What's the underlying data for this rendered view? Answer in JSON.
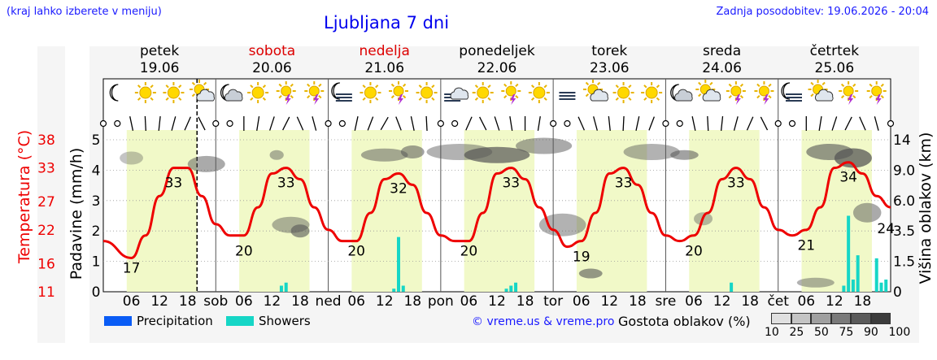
{
  "header": {
    "hint": "(kraj lahko izberete v meniju)",
    "title": "Ljubljana 7 dni",
    "updated": "Zadnja posodobitev: 19.06.2026 - 20:04"
  },
  "days": [
    {
      "name": "petek",
      "date": "19.06",
      "color": "#000000",
      "icons": [
        "moon",
        "sun",
        "sun",
        "cloud-sun"
      ]
    },
    {
      "name": "sobota",
      "date": "20.06",
      "color": "#dd0000",
      "icons": [
        "moon-cloud",
        "sun",
        "sun-storm",
        "sun-storm"
      ]
    },
    {
      "name": "nedelja",
      "date": "21.06",
      "color": "#dd0000",
      "icons": [
        "moon-fog",
        "sun",
        "sun-storm",
        "sun"
      ]
    },
    {
      "name": "ponedeljek",
      "date": "22.06",
      "color": "#000000",
      "icons": [
        "fog-cloud",
        "sun",
        "sun-storm",
        "sun"
      ]
    },
    {
      "name": "torek",
      "date": "23.06",
      "color": "#000000",
      "icons": [
        "fog",
        "cloud-sun",
        "sun",
        "sun"
      ]
    },
    {
      "name": "sreda",
      "date": "24.06",
      "color": "#000000",
      "icons": [
        "moon-cloud",
        "cloud-sun",
        "sun-storm",
        "sun-storm"
      ]
    },
    {
      "name": "četrtek",
      "date": "25.06",
      "color": "#000000",
      "icons": [
        "moon-fog",
        "cloud-sun",
        "sun-storm",
        "sun-storm"
      ]
    }
  ],
  "axes": {
    "temperature_label": "Temperatura (°C)",
    "precip_label": "Padavine (mm/h)",
    "cloud_label": "Višina oblakov (km)",
    "temperature_ticks": [
      "38",
      "33",
      "27",
      "22",
      "16",
      "11"
    ],
    "precip_ticks": [
      "5",
      "4",
      "3",
      "2",
      "1",
      "0"
    ],
    "cloud_ticks": [
      "14",
      "9.0",
      "6.0",
      "3.5",
      "1.5",
      "0"
    ],
    "x_day_abbr": [
      "sob",
      "ned",
      "pon",
      "tor",
      "sre",
      "čet"
    ],
    "x_hour_labels": [
      "06",
      "12",
      "18"
    ]
  },
  "chart_data": {
    "type": "line",
    "x_unit": "hours from 19.06 00:00",
    "ylim_temperature": [
      11,
      38
    ],
    "ylim_precip": [
      0,
      5
    ],
    "temperature_series": {
      "x": [
        0,
        6,
        9,
        12,
        15,
        18,
        21,
        24,
        27,
        30,
        33,
        36,
        39,
        42,
        45,
        48,
        51,
        54,
        57,
        60,
        63,
        66,
        69,
        72,
        75,
        78,
        81,
        84,
        87,
        90,
        93,
        96,
        99,
        102,
        105,
        108,
        111,
        114,
        117,
        120,
        123,
        126,
        129,
        132,
        135,
        138,
        141,
        144,
        147,
        150,
        153,
        156,
        159,
        162,
        165,
        168
      ],
      "values": [
        20,
        17,
        21,
        28,
        33,
        33,
        28,
        23,
        21,
        21,
        26,
        32,
        33,
        31,
        26,
        22,
        20,
        20,
        25,
        31,
        32,
        30,
        25,
        21,
        20,
        20,
        25,
        32,
        33,
        31,
        26,
        22,
        19,
        20,
        25,
        32,
        33,
        30,
        25,
        21,
        20,
        21,
        25,
        31,
        33,
        31,
        26,
        22,
        21,
        22,
        26,
        33,
        34,
        32,
        28,
        26
      ]
    },
    "temperature_labels": [
      {
        "x": 6,
        "value": "17"
      },
      {
        "x": 15,
        "value": "33"
      },
      {
        "x": 30,
        "value": "20"
      },
      {
        "x": 39,
        "value": "33"
      },
      {
        "x": 54,
        "value": "20"
      },
      {
        "x": 63,
        "value": "32"
      },
      {
        "x": 78,
        "value": "20"
      },
      {
        "x": 87,
        "value": "33"
      },
      {
        "x": 102,
        "value": "19"
      },
      {
        "x": 111,
        "value": "33"
      },
      {
        "x": 126,
        "value": "20"
      },
      {
        "x": 135,
        "value": "33"
      },
      {
        "x": 150,
        "value": "21"
      },
      {
        "x": 159,
        "value": "34"
      },
      {
        "x": 167,
        "value": "24"
      }
    ],
    "showers": [
      {
        "x": 38,
        "mm": 0.2
      },
      {
        "x": 39,
        "mm": 0.3
      },
      {
        "x": 62,
        "mm": 0.1
      },
      {
        "x": 63,
        "mm": 1.8
      },
      {
        "x": 64,
        "mm": 0.2
      },
      {
        "x": 86,
        "mm": 0.1
      },
      {
        "x": 87,
        "mm": 0.2
      },
      {
        "x": 88,
        "mm": 0.3
      },
      {
        "x": 134,
        "mm": 0.3
      },
      {
        "x": 158,
        "mm": 0.2
      },
      {
        "x": 159,
        "mm": 2.5
      },
      {
        "x": 160,
        "mm": 0.4
      },
      {
        "x": 161,
        "mm": 1.2
      },
      {
        "x": 165,
        "mm": 1.1
      },
      {
        "x": 166,
        "mm": 0.3
      },
      {
        "x": 167,
        "mm": 0.4
      }
    ],
    "legend": [
      {
        "name": "Precipitation",
        "color": "#0a5cf5"
      },
      {
        "name": "Showers",
        "color": "#16d6c6"
      }
    ]
  },
  "legend": {
    "precipitation": "Precipitation",
    "showers": "Showers",
    "copyright": "© vreme.us & vreme.pro",
    "cloud_density_title": "Gostota oblakov (%)",
    "cloud_density_ticks": [
      "10",
      "25",
      "50",
      "75",
      "90",
      "100"
    ],
    "cloud_density_colors": [
      "#e0e0e0",
      "#c4c4c4",
      "#a0a0a0",
      "#7a7a7a",
      "#5a5a5a",
      "#3c3c3c"
    ]
  }
}
